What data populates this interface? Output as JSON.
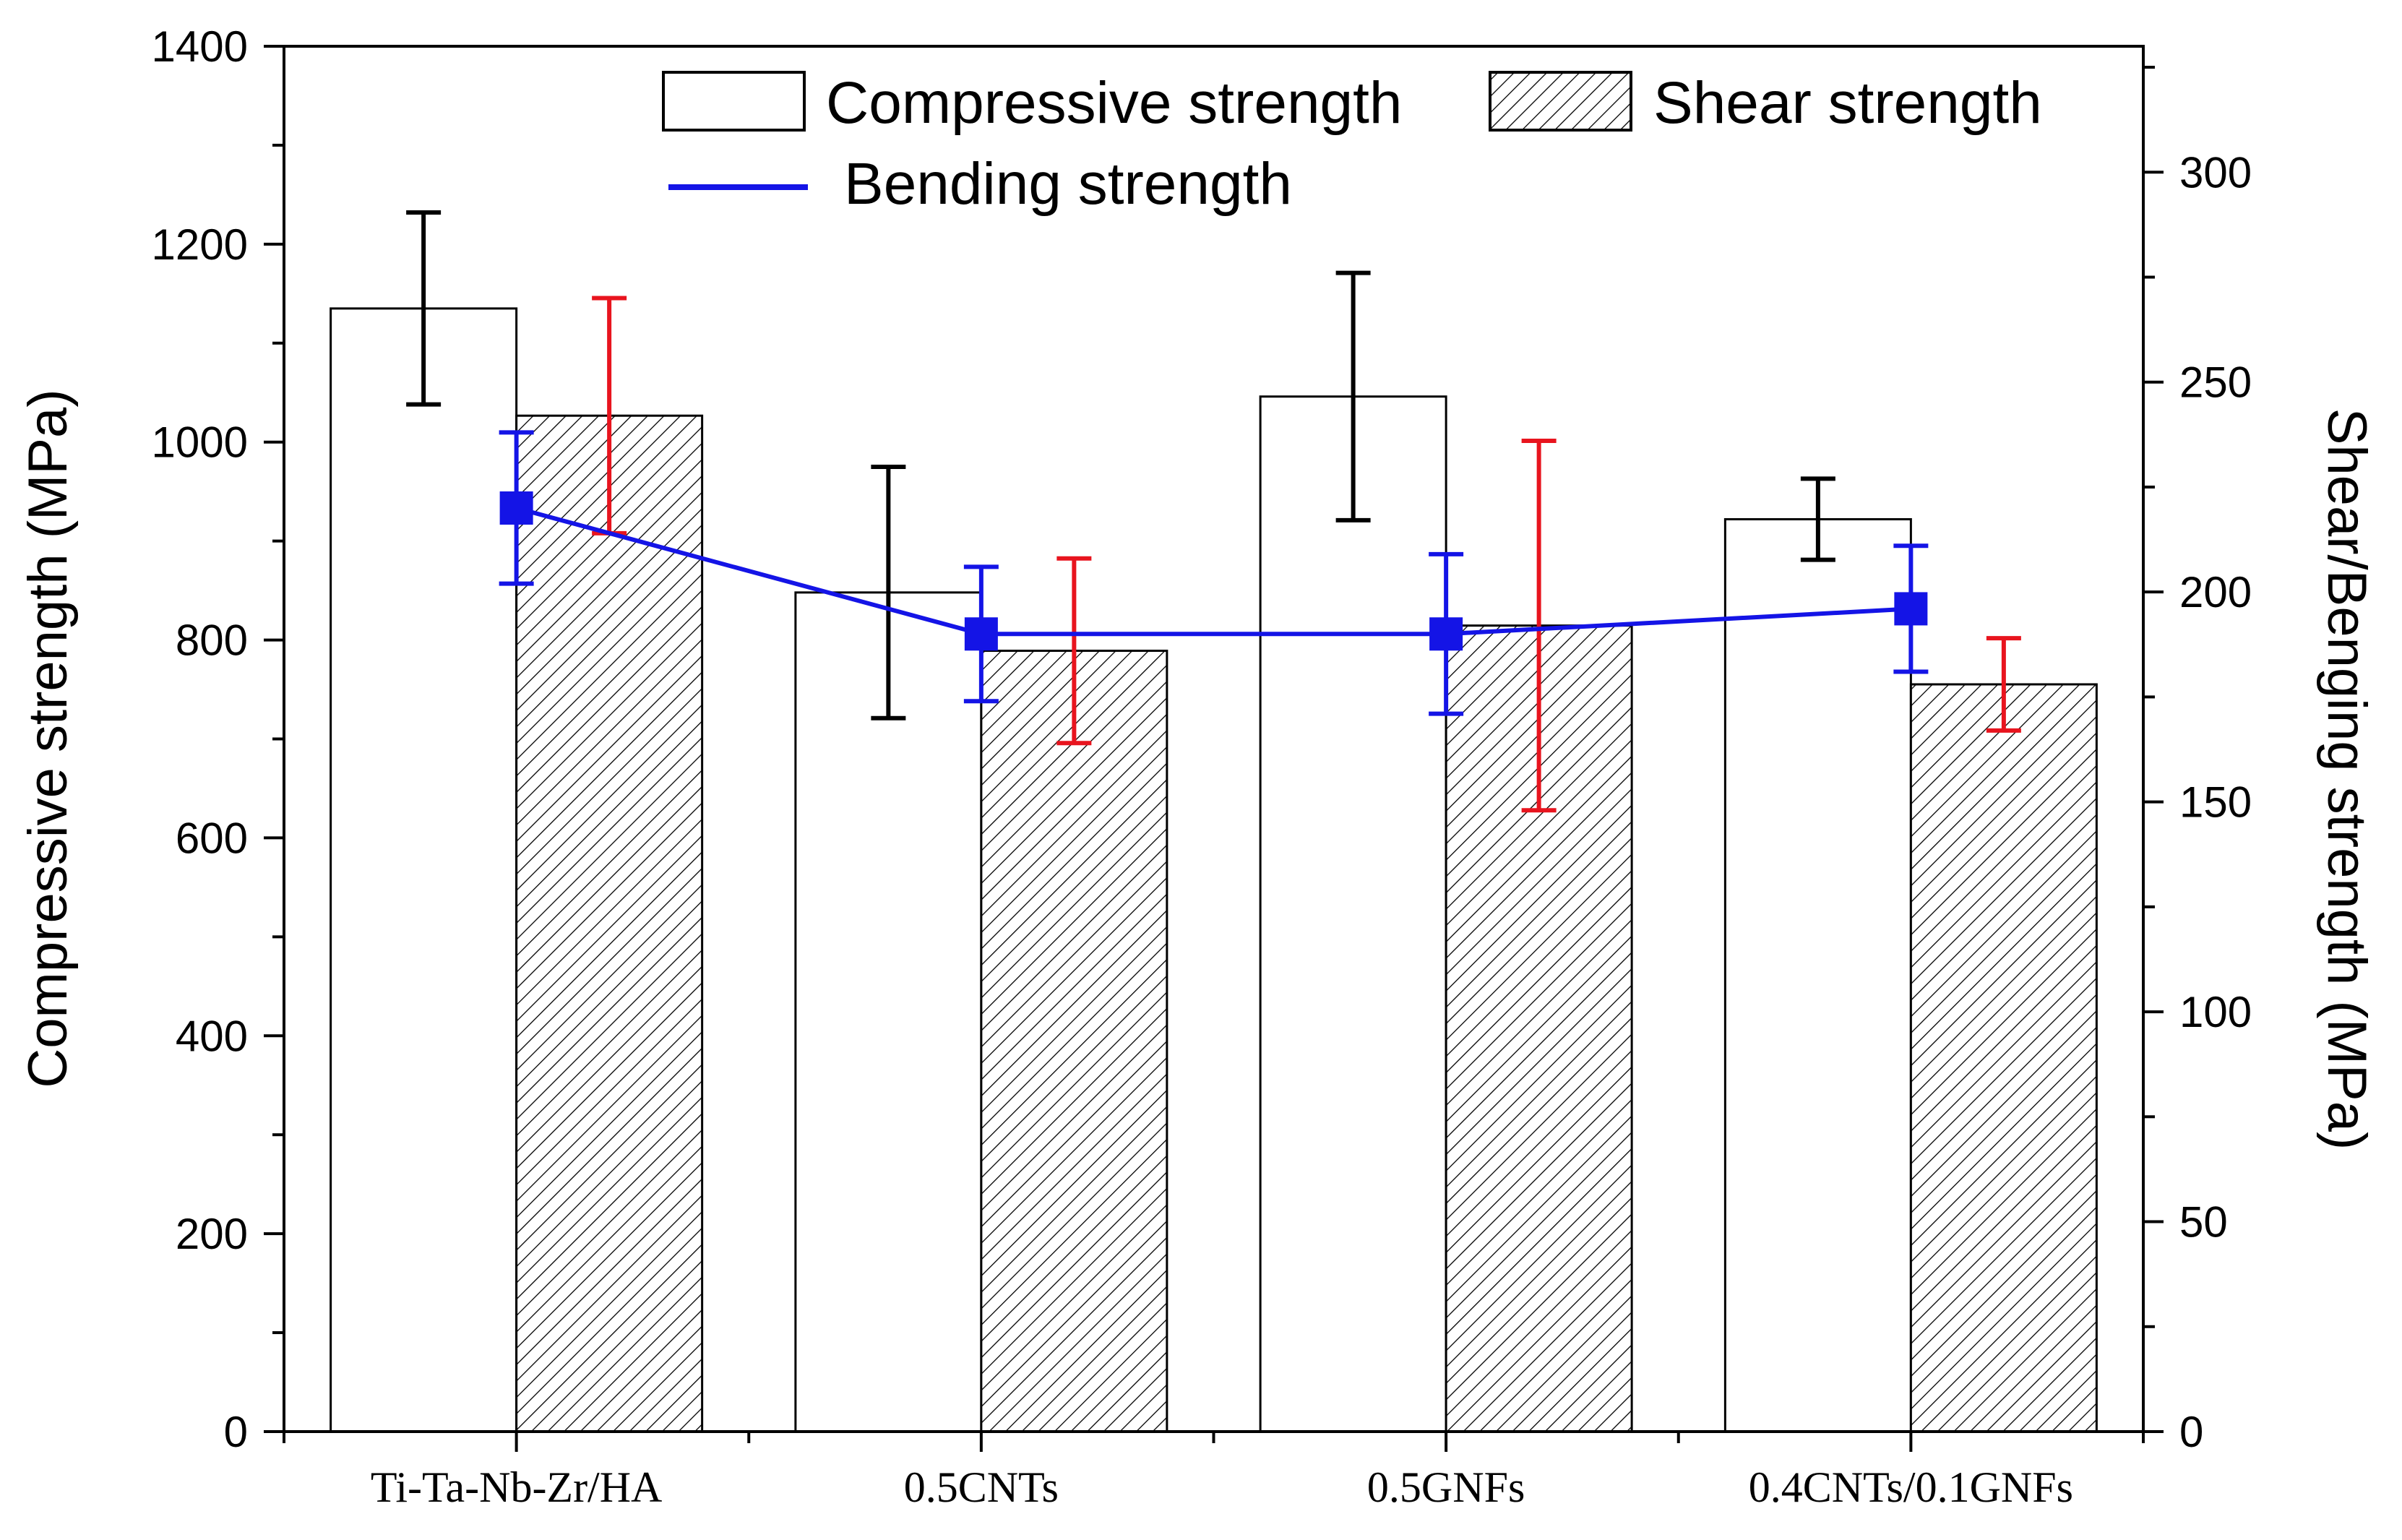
{
  "chart_data": {
    "type": "bar",
    "title": "",
    "categories": [
      "Ti-Ta-Nb-Zr/HA",
      "0.5CNTs",
      "0.5GNFs",
      "0.4CNTs/0.1GNFs"
    ],
    "xlabel": "",
    "ylabel": "Compressive strength (MPa)",
    "y2label": "Shear/Benging strength (MPa)",
    "ylim": [
      0,
      1400
    ],
    "y2lim": [
      0,
      330
    ],
    "yticks": [
      0,
      200,
      400,
      600,
      800,
      1000,
      1200,
      1400
    ],
    "y2ticks": [
      0,
      50,
      100,
      150,
      200,
      250,
      300
    ],
    "grid": false,
    "legend_position": "top-right",
    "series": [
      {
        "name": "Compressive strength",
        "kind": "bar",
        "axis": "left",
        "pattern": "none",
        "values": [
          1135,
          848,
          1046,
          922
        ],
        "error": [
          97,
          127,
          125,
          41
        ],
        "error_color": "#000000"
      },
      {
        "name": "Shear strength",
        "kind": "bar",
        "axis": "right",
        "pattern": "hatch",
        "values": [
          242,
          186,
          192,
          178
        ],
        "error": [
          28,
          22,
          44,
          11
        ],
        "error_color": "#e8141e"
      },
      {
        "name": "Bending strength",
        "kind": "line",
        "axis": "right",
        "marker": "square",
        "color": "#1414e6",
        "values": [
          220,
          190,
          190,
          196
        ],
        "error": [
          18,
          16,
          19,
          15
        ]
      }
    ]
  }
}
